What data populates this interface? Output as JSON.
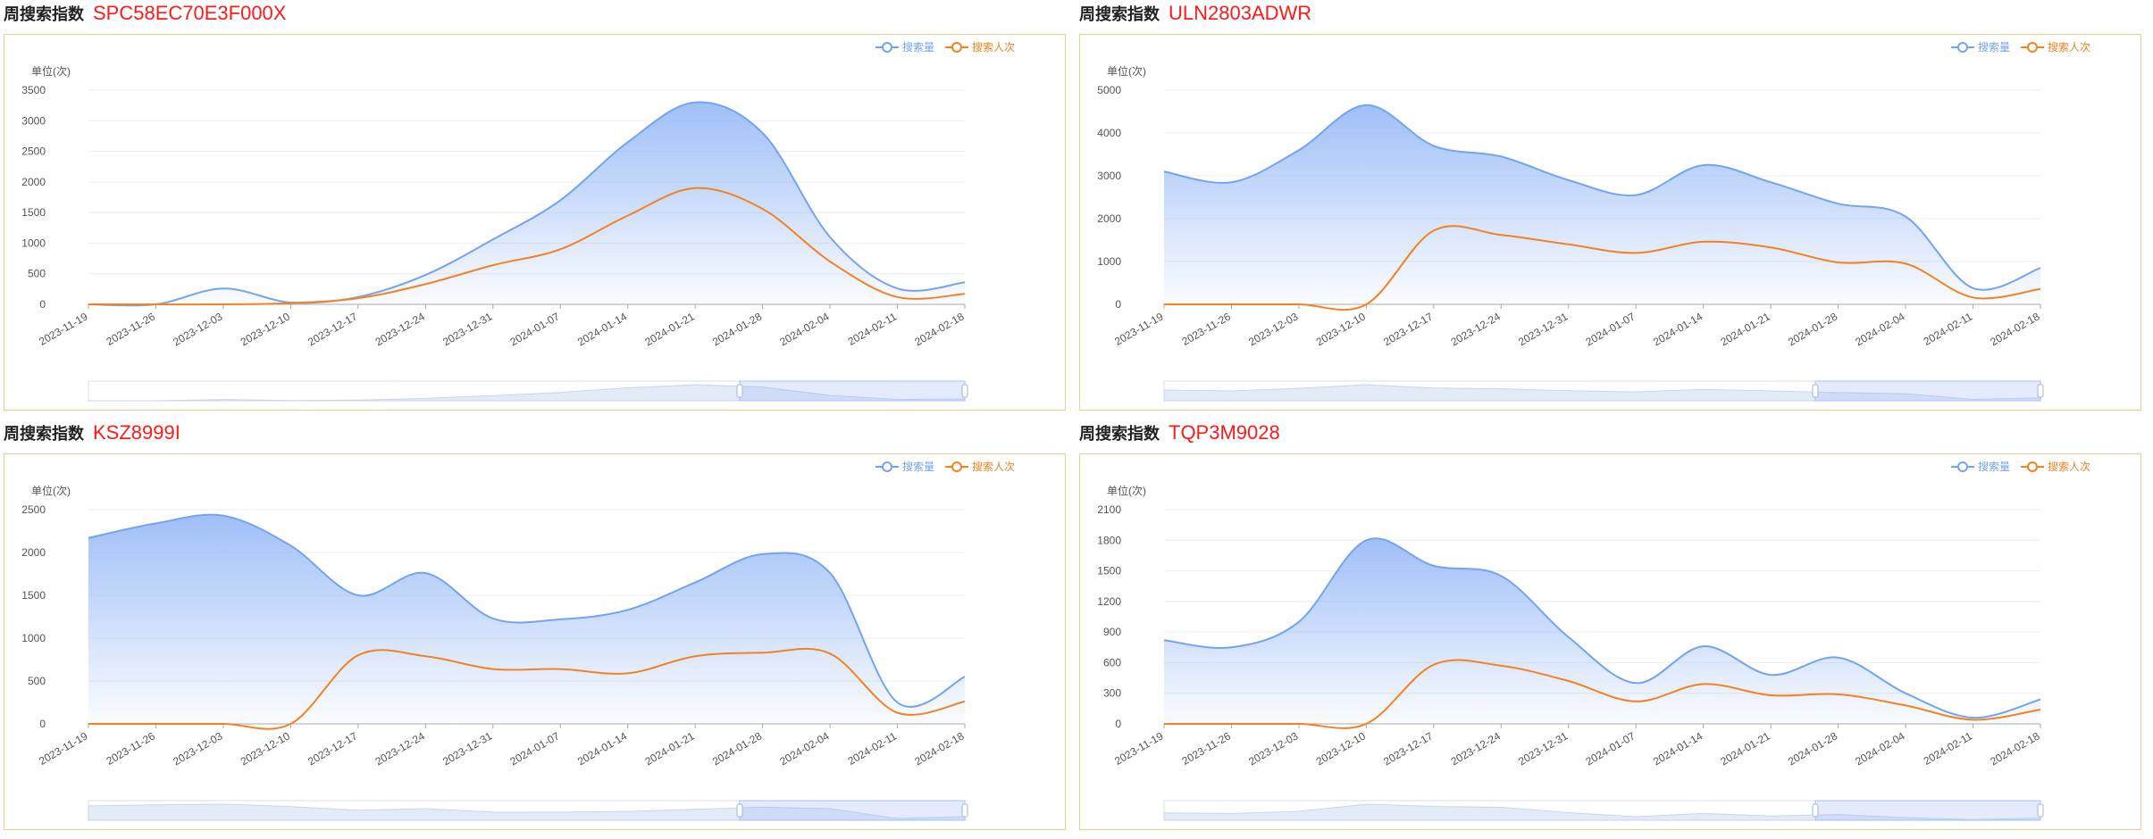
{
  "panels": [
    {
      "label": "周搜索指数",
      "part": "SPC58EC70E3F000X",
      "legend": [
        "搜索量",
        "搜索人次"
      ],
      "unit": "单位(次)",
      "chart_data": {
        "type": "area",
        "x": [
          "2023-11-19",
          "2023-11-26",
          "2023-12-03",
          "2023-12-10",
          "2023-12-17",
          "2023-12-24",
          "2023-12-31",
          "2024-01-07",
          "2024-01-14",
          "2024-01-21",
          "2024-01-28",
          "2024-02-04",
          "2024-02-11",
          "2024-02-18"
        ],
        "yticks": [
          0,
          500,
          1000,
          1500,
          2000,
          2500,
          3000,
          3500
        ],
        "ylim": [
          0,
          3500
        ],
        "series": [
          {
            "name": "搜索量",
            "values": [
              0,
              0,
              260,
              30,
              120,
              480,
              1060,
              1700,
              2650,
              3300,
              2800,
              1100,
              260,
              360
            ]
          },
          {
            "name": "搜索人次",
            "values": [
              0,
              0,
              0,
              20,
              100,
              330,
              640,
              900,
              1450,
              1900,
              1560,
              700,
              120,
              170
            ]
          }
        ]
      }
    },
    {
      "label": "周搜索指数",
      "part": "ULN2803ADWR",
      "legend": [
        "搜索量",
        "搜索人次"
      ],
      "unit": "单位(次)",
      "chart_data": {
        "type": "area",
        "x": [
          "2023-11-19",
          "2023-11-26",
          "2023-12-03",
          "2023-12-10",
          "2023-12-17",
          "2023-12-24",
          "2023-12-31",
          "2024-01-07",
          "2024-01-14",
          "2024-01-21",
          "2024-01-28",
          "2024-02-04",
          "2024-02-11",
          "2024-02-18"
        ],
        "yticks": [
          0,
          1000,
          2000,
          3000,
          4000,
          5000
        ],
        "ylim": [
          0,
          5000
        ],
        "series": [
          {
            "name": "搜索量",
            "values": [
              3100,
              2850,
              3600,
              4650,
              3700,
              3450,
              2900,
              2550,
              3250,
              2850,
              2350,
              2050,
              380,
              850
            ]
          },
          {
            "name": "搜索人次",
            "values": [
              0,
              0,
              0,
              0,
              1720,
              1620,
              1400,
              1200,
              1460,
              1330,
              980,
              950,
              160,
              360
            ]
          }
        ]
      }
    },
    {
      "label": "周搜索指数",
      "part": "KSZ8999I",
      "legend": [
        "搜索量",
        "搜索人次"
      ],
      "unit": "单位(次)",
      "chart_data": {
        "type": "area",
        "x": [
          "2023-11-19",
          "2023-11-26",
          "2023-12-03",
          "2023-12-10",
          "2023-12-17",
          "2023-12-24",
          "2023-12-31",
          "2024-01-07",
          "2024-01-14",
          "2024-01-21",
          "2024-01-28",
          "2024-02-04",
          "2024-02-11",
          "2024-02-18"
        ],
        "yticks": [
          0,
          500,
          1000,
          1500,
          2000,
          2500
        ],
        "ylim": [
          0,
          2500
        ],
        "series": [
          {
            "name": "搜索量",
            "values": [
              2170,
              2340,
              2430,
              2080,
              1500,
              1760,
              1230,
              1220,
              1330,
              1650,
              1980,
              1760,
              250,
              550
            ]
          },
          {
            "name": "搜索人次",
            "values": [
              0,
              0,
              0,
              0,
              800,
              790,
              640,
              640,
              590,
              790,
              830,
              820,
              130,
              260
            ]
          }
        ]
      }
    },
    {
      "label": "周搜索指数",
      "part": "TQP3M9028",
      "legend": [
        "搜索量",
        "搜索人次"
      ],
      "unit": "单位(次)",
      "chart_data": {
        "type": "area",
        "x": [
          "2023-11-19",
          "2023-11-26",
          "2023-12-03",
          "2023-12-10",
          "2023-12-17",
          "2023-12-24",
          "2023-12-31",
          "2024-01-07",
          "2024-01-14",
          "2024-01-21",
          "2024-01-28",
          "2024-02-04",
          "2024-02-11",
          "2024-02-18"
        ],
        "yticks": [
          0,
          300,
          600,
          900,
          1200,
          1500,
          1800,
          2100
        ],
        "ylim": [
          0,
          2100
        ],
        "series": [
          {
            "name": "搜索量",
            "values": [
              820,
              750,
              1000,
              1800,
              1550,
              1450,
              850,
              400,
              760,
              480,
              650,
              300,
              60,
              240
            ]
          },
          {
            "name": "搜索人次",
            "values": [
              0,
              0,
              0,
              0,
              580,
              570,
              420,
              220,
              390,
              280,
              290,
              180,
              40,
              140
            ]
          }
        ]
      }
    }
  ],
  "colors": {
    "search_volume": "#73a3f3",
    "search_volume_fill_top": "#8fb4f7",
    "search_people": "#f5821f",
    "border": "#f7c98c",
    "part_text": "#ff1a1a"
  }
}
